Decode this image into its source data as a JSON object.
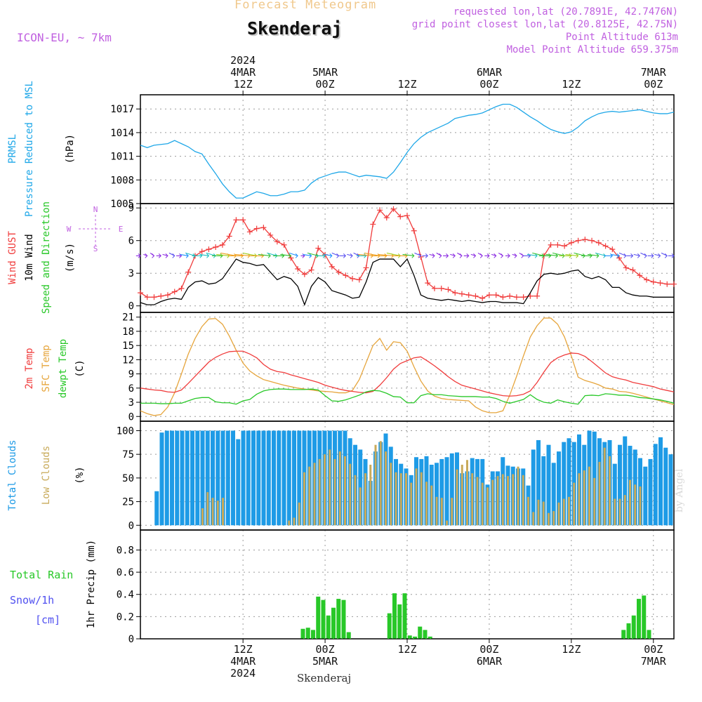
{
  "header": {
    "product": "Forecast Meteogram",
    "location": "Skenderaj",
    "model": "ICON-EU, ~ 7km",
    "requested": "requested lon,lat (20.7891E, 42.7476N)",
    "gridpoint": "grid point closest lon,lat (20.8125E, 42.75N)",
    "point_altitude": "Point Altitude 613m",
    "model_altitude": "Model Point Altitude 659.375m",
    "footer": "Skenderaj",
    "watermark": "by Angel"
  },
  "colors": {
    "pressure": "#1ea7e8",
    "gust": "#f03c3c",
    "wind": "#000000",
    "t2m": "#f03c3c",
    "sfc": "#e6a53c",
    "dew": "#28c828",
    "total_clouds": "#1e9be6",
    "low_clouds": "#c8aa5a",
    "rain": "#28c828",
    "snow": "#5050f0",
    "header_purple": "#c060e0",
    "header_orange": "#f0c88c"
  },
  "time_axis": {
    "top_labels": [
      {
        "t": 15,
        "lines": [
          "2024",
          "4MAR",
          "12Z"
        ]
      },
      {
        "t": 27,
        "lines": [
          "",
          "5MAR",
          "00Z"
        ]
      },
      {
        "t": 39,
        "lines": [
          "",
          "",
          "12Z"
        ]
      },
      {
        "t": 51,
        "lines": [
          "",
          "6MAR",
          "00Z"
        ]
      },
      {
        "t": 63,
        "lines": [
          "",
          "",
          "12Z"
        ]
      },
      {
        "t": 75,
        "lines": [
          "",
          "7MAR",
          "00Z"
        ]
      }
    ],
    "bottom_labels": [
      {
        "t": 15,
        "lines": [
          "12Z",
          "4MAR",
          "2024"
        ]
      },
      {
        "t": 27,
        "lines": [
          "00Z",
          "5MAR",
          ""
        ]
      },
      {
        "t": 39,
        "lines": [
          "12Z",
          "",
          ""
        ]
      },
      {
        "t": 51,
        "lines": [
          "00Z",
          "6MAR",
          ""
        ]
      },
      {
        "t": 63,
        "lines": [
          "12Z",
          "",
          ""
        ]
      },
      {
        "t": 75,
        "lines": [
          "00Z",
          "7MAR",
          ""
        ]
      }
    ]
  },
  "chart_data": [
    {
      "type": "line",
      "panel": "pressure",
      "ylabels": [
        "PRMSL",
        "Pressure Reduced to MSL",
        "(hPa)"
      ],
      "yticks": [
        1005,
        1008,
        1011,
        1014,
        1017
      ],
      "ylim": [
        1005,
        1018.8
      ],
      "series": [
        {
          "values": [
            1012.4,
            1012.1,
            1012.4,
            1012.5,
            1012.6,
            1013.0,
            1012.6,
            1012.2,
            1011.6,
            1011.3,
            1010.0,
            1008.8,
            1007.5,
            1006.5,
            1005.7,
            1005.7,
            1006.1,
            1006.5,
            1006.3,
            1006.0,
            1006.0,
            1006.2,
            1006.5,
            1006.5,
            1006.7,
            1007.6,
            1008.2,
            1008.5,
            1008.8,
            1009.0,
            1009.0,
            1008.7,
            1008.4,
            1008.6,
            1008.5,
            1008.4,
            1008.2,
            1009.0,
            1010.2,
            1011.5,
            1012.6,
            1013.4,
            1014.0,
            1014.4,
            1014.8,
            1015.2,
            1015.8,
            1016.0,
            1016.2,
            1016.3,
            1016.5,
            1016.9,
            1017.3,
            1017.6,
            1017.6,
            1017.2,
            1016.6,
            1016.0,
            1015.5,
            1014.9,
            1014.4,
            1014.1,
            1013.9,
            1014.1,
            1014.7,
            1015.5,
            1016.0,
            1016.4,
            1016.6,
            1016.7,
            1016.6,
            1016.7,
            1016.8,
            1016.9,
            1016.7,
            1016.5,
            1016.4,
            1016.4,
            1016.6
          ]
        }
      ]
    },
    {
      "type": "line",
      "panel": "wind",
      "ylabels": [
        "Wind GUST",
        "10m Wind",
        "Speed and Direction",
        "(m/s)"
      ],
      "compass": [
        "N",
        "W",
        "E",
        "S"
      ],
      "yticks": [
        0,
        3,
        6,
        9
      ],
      "ylim": [
        -0.6,
        9.4
      ],
      "series": [
        {
          "name": "Wind GUST",
          "values": [
            1.2,
            0.8,
            0.8,
            0.9,
            1.0,
            1.3,
            1.6,
            3.1,
            4.6,
            5.0,
            5.2,
            5.4,
            5.6,
            6.4,
            7.9,
            7.9,
            6.8,
            7.1,
            7.2,
            6.5,
            5.9,
            5.6,
            4.4,
            3.4,
            2.9,
            3.3,
            5.3,
            4.7,
            3.6,
            3.1,
            2.8,
            2.5,
            2.4,
            3.5,
            7.5,
            8.8,
            8.1,
            8.9,
            8.2,
            8.3,
            6.9,
            4.5,
            2.1,
            1.6,
            1.6,
            1.5,
            1.2,
            1.1,
            1.0,
            0.9,
            0.7,
            1.0,
            1.0,
            0.8,
            0.9,
            0.8,
            0.8,
            0.9,
            0.9,
            4.6,
            5.6,
            5.6,
            5.5,
            5.8,
            6.0,
            6.1,
            6.0,
            5.8,
            5.5,
            5.2,
            4.4,
            3.5,
            3.3,
            2.8,
            2.4,
            2.2,
            2.1,
            2.0,
            2.0
          ]
        },
        {
          "name": "10m Wind",
          "values": [
            0.3,
            0.1,
            0.1,
            0.4,
            0.6,
            0.7,
            0.6,
            1.7,
            2.2,
            2.3,
            2.0,
            2.1,
            2.5,
            3.4,
            4.3,
            4.0,
            3.9,
            3.7,
            3.8,
            3.1,
            2.4,
            2.7,
            2.5,
            1.8,
            0.1,
            1.8,
            2.6,
            2.2,
            1.4,
            1.2,
            1.0,
            0.7,
            0.8,
            2.2,
            4.0,
            4.3,
            4.3,
            4.3,
            3.6,
            4.3,
            2.8,
            1.0,
            0.7,
            0.6,
            0.5,
            0.6,
            0.5,
            0.4,
            0.5,
            0.4,
            0.3,
            0.4,
            0.4,
            0.3,
            0.3,
            0.3,
            0.2,
            1.2,
            2.3,
            2.9,
            3.0,
            2.9,
            3.0,
            3.2,
            3.3,
            2.7,
            2.5,
            2.7,
            2.4,
            1.7,
            1.7,
            1.2,
            1.0,
            0.9,
            0.9,
            0.8,
            0.8,
            0.8,
            0.8
          ]
        }
      ]
    },
    {
      "type": "line",
      "panel": "temperature",
      "ylabels": [
        "2m Temp",
        "SFC Temp",
        "dewpt Temp",
        "(C)"
      ],
      "yticks": [
        0,
        3,
        6,
        9,
        12,
        15,
        18,
        21
      ],
      "ylim": [
        -1,
        22
      ],
      "series": [
        {
          "name": "2m Temp",
          "values": [
            6.0,
            5.8,
            5.6,
            5.5,
            5.2,
            5.1,
            5.6,
            7.0,
            8.5,
            10.0,
            11.5,
            12.5,
            13.2,
            13.7,
            13.8,
            13.8,
            13.2,
            12.4,
            11.0,
            10.0,
            9.5,
            9.3,
            8.8,
            8.4,
            8.0,
            7.6,
            7.2,
            6.6,
            6.2,
            5.8,
            5.5,
            5.3,
            5.1,
            5.0,
            5.3,
            6.6,
            8.2,
            10.0,
            11.2,
            11.8,
            12.4,
            12.6,
            11.7,
            10.7,
            9.6,
            8.4,
            7.4,
            6.6,
            6.2,
            5.8,
            5.4,
            5.0,
            4.7,
            4.4,
            4.3,
            4.4,
            4.7,
            5.4,
            7.2,
            9.4,
            11.4,
            12.4,
            13.0,
            13.4,
            13.3,
            12.7,
            11.6,
            10.4,
            9.2,
            8.4,
            8.0,
            7.7,
            7.2,
            6.9,
            6.6,
            6.3,
            5.8,
            5.5,
            5.2
          ]
        },
        {
          "name": "SFC Temp",
          "values": [
            1.2,
            0.6,
            0.2,
            0.4,
            2.0,
            5.0,
            9.0,
            13.2,
            16.5,
            19.0,
            20.6,
            20.7,
            19.5,
            17.0,
            14.0,
            11.3,
            9.6,
            8.6,
            7.8,
            7.4,
            7.0,
            6.6,
            6.3,
            6.0,
            5.8,
            5.6,
            5.4,
            5.3,
            5.2,
            5.0,
            5.0,
            5.5,
            7.8,
            11.4,
            15.0,
            16.5,
            14.0,
            15.8,
            15.6,
            13.8,
            10.5,
            7.5,
            5.4,
            4.3,
            3.8,
            3.6,
            3.5,
            3.4,
            3.3,
            2.0,
            1.2,
            0.8,
            0.8,
            1.2,
            4.5,
            8.5,
            12.8,
            16.8,
            19.2,
            20.8,
            20.8,
            19.5,
            16.8,
            12.8,
            8.3,
            7.6,
            7.2,
            6.7,
            6.0,
            5.8,
            5.3,
            5.2,
            4.9,
            4.5,
            4.1,
            3.7,
            3.3,
            2.9,
            2.5
          ]
        },
        {
          "name": "dewpt Temp",
          "values": [
            2.8,
            2.8,
            2.8,
            2.7,
            2.7,
            2.8,
            2.8,
            3.3,
            3.8,
            4.0,
            4.0,
            3.1,
            2.9,
            2.9,
            2.6,
            3.3,
            3.6,
            4.7,
            5.4,
            5.7,
            5.8,
            5.8,
            5.7,
            5.7,
            5.7,
            5.8,
            5.6,
            4.4,
            3.3,
            3.2,
            3.5,
            4.0,
            4.5,
            5.2,
            5.5,
            5.4,
            4.9,
            4.2,
            4.1,
            2.9,
            2.9,
            4.4,
            4.8,
            4.6,
            4.6,
            4.4,
            4.3,
            4.2,
            4.2,
            4.2,
            4.1,
            4.1,
            3.8,
            3.2,
            2.8,
            3.2,
            3.6,
            4.6,
            3.6,
            3.0,
            2.8,
            3.5,
            3.1,
            2.8,
            2.6,
            4.4,
            4.5,
            4.4,
            4.8,
            4.7,
            4.5,
            4.5,
            4.3,
            4.0,
            3.9,
            3.7,
            3.5,
            3.2,
            2.8
          ]
        }
      ]
    },
    {
      "type": "bar",
      "panel": "clouds",
      "ylabels": [
        "Total Clouds",
        "Low Clouds",
        "(%)"
      ],
      "yticks": [
        0,
        25,
        50,
        75,
        100
      ],
      "ylim": [
        -5,
        110
      ],
      "series": [
        {
          "name": "Total Clouds",
          "values": [
            0,
            36,
            98,
            100,
            100,
            100,
            100,
            100,
            100,
            100,
            100,
            100,
            100,
            100,
            100,
            100,
            100,
            91,
            100,
            100,
            100,
            100,
            100,
            100,
            100,
            100,
            100,
            100,
            100,
            100,
            100,
            100,
            100,
            100,
            100,
            100,
            100,
            100,
            100,
            92,
            85,
            80,
            70,
            47,
            78,
            88,
            97,
            83,
            70,
            65,
            60,
            53,
            72,
            70,
            73,
            64,
            66,
            70,
            72,
            76,
            77,
            55,
            57,
            71,
            70,
            70,
            43,
            57,
            57,
            72,
            63,
            62,
            60,
            60,
            42,
            80,
            90,
            73,
            85,
            66,
            78,
            88,
            92,
            88,
            96,
            85,
            100,
            99,
            92,
            88,
            90,
            65,
            85,
            94,
            84,
            80,
            71,
            62,
            70,
            86,
            93,
            82,
            75
          ]
        },
        {
          "name": "Low Clouds",
          "values": [
            0,
            0,
            0,
            0,
            0,
            0,
            0,
            0,
            0,
            0,
            18,
            35,
            29,
            26,
            29,
            0,
            0,
            0,
            0,
            0,
            0,
            0,
            0,
            0,
            0,
            0,
            0,
            5,
            8,
            24,
            56,
            62,
            66,
            70,
            75,
            80,
            70,
            78,
            73,
            65,
            53,
            40,
            55,
            64,
            85,
            89,
            78,
            66,
            56,
            55,
            55,
            45,
            60,
            56,
            46,
            42,
            30,
            29,
            5,
            29,
            59,
            64,
            69,
            55,
            51,
            45,
            40,
            48,
            52,
            54,
            52,
            54,
            62,
            53,
            30,
            14,
            27,
            25,
            13,
            15,
            24,
            28,
            30,
            45,
            55,
            58,
            62,
            50,
            67,
            82,
            73,
            28,
            28,
            32,
            48,
            43,
            41
          ]
        }
      ]
    },
    {
      "type": "bar",
      "panel": "precip",
      "ylabels": [
        "Total Rain",
        "Snow/1h",
        "[cm]",
        "1hr Precip (mm)"
      ],
      "yticks": [
        "0",
        "0.2",
        "0.4",
        "0.6",
        "0.8"
      ],
      "ylim": [
        0,
        0.98
      ],
      "series": [
        {
          "name": "Total Rain",
          "values": [
            0,
            0,
            0,
            0,
            0,
            0,
            0,
            0,
            0,
            0,
            0,
            0,
            0,
            0,
            0,
            0,
            0,
            0,
            0,
            0,
            0,
            0,
            0,
            0,
            0,
            0,
            0,
            0,
            0,
            0,
            0.09,
            0.1,
            0.08,
            0.38,
            0.35,
            0.21,
            0.28,
            0.36,
            0.35,
            0.06,
            0,
            0,
            0,
            0,
            0,
            0,
            0,
            0.23,
            0.41,
            0.31,
            0.41,
            0.03,
            0.02,
            0.11,
            0.08,
            0.02,
            0,
            0,
            0,
            0,
            0,
            0,
            0,
            0,
            0,
            0,
            0,
            0,
            0,
            0,
            0,
            0,
            0,
            0,
            0,
            0,
            0,
            0,
            0,
            0,
            0,
            0,
            0,
            0,
            0,
            0,
            0,
            0,
            0,
            0,
            0,
            0,
            0,
            0.08,
            0.14,
            0.21,
            0.36,
            0.39,
            0.08,
            0,
            0,
            0,
            0,
            0
          ]
        }
      ]
    }
  ]
}
